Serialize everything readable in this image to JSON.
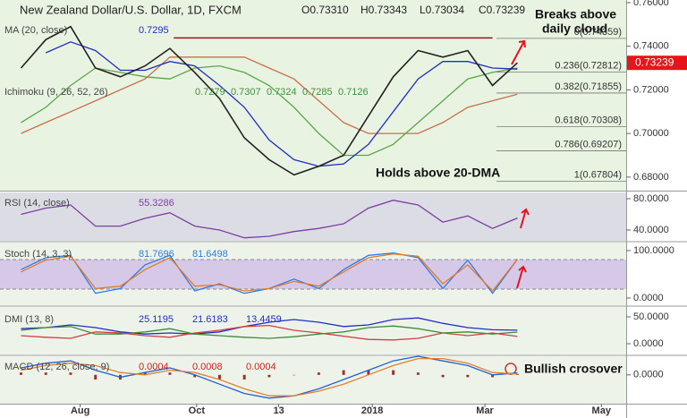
{
  "chart_data": [
    {
      "type": "line",
      "title": "New Zealand Dollar/U.S. Dollar, 1D, FXCM",
      "ohlc": [
        "O0.73310",
        "H0.73343",
        "L0.73034",
        "C0.73239"
      ],
      "indicators": [
        {
          "label": "MA (20, close)",
          "values": [
            "0.7295"
          ],
          "color": "#1f2fbf"
        },
        {
          "label": "Ichimoku (9, 26, 52, 26)",
          "values": [
            "0.7279",
            "0.7307",
            "0.7324",
            "0.7285",
            "0.7126"
          ],
          "color": "#3f8f3f"
        }
      ],
      "x": [
        0,
        13,
        26,
        39,
        52,
        65,
        78,
        91,
        104,
        117,
        130,
        143,
        156,
        169,
        182,
        195,
        208,
        221,
        234,
        247,
        260
      ],
      "xlim": [
        -11,
        317
      ],
      "xticks": [
        {
          "value": 31,
          "label": "Aug"
        },
        {
          "value": 92,
          "label": "Oct"
        },
        {
          "value": 135,
          "label": "13"
        },
        {
          "value": 184,
          "label": "2018"
        },
        {
          "value": 243,
          "label": "Mar"
        },
        {
          "value": 304,
          "label": "May"
        }
      ],
      "ylim": [
        0.6742,
        0.7612
      ],
      "yticks": [
        {
          "value": 0.76,
          "label": "0.76000"
        },
        {
          "value": 0.74,
          "label": "0.74000"
        },
        {
          "value": 0.72,
          "label": "0.72000"
        },
        {
          "value": 0.7,
          "label": "0.70000"
        },
        {
          "value": 0.68,
          "label": "0.68000"
        }
      ],
      "series": [
        {
          "color": "#5aa64a",
          "values": [
            0.705,
            0.712,
            0.722,
            0.73,
            0.728,
            0.726,
            0.725,
            0.73,
            0.731,
            0.728,
            0.722,
            0.712,
            0.7,
            0.69,
            0.69,
            0.695,
            0.705,
            0.715,
            0.725,
            0.728,
            0.73
          ]
        },
        {
          "color": "#c8704a",
          "values": [
            0.7,
            0.705,
            0.71,
            0.715,
            0.72,
            0.725,
            0.735,
            0.735,
            0.735,
            0.735,
            0.73,
            0.725,
            0.715,
            0.705,
            0.7,
            0.7,
            0.7,
            0.705,
            0.712,
            0.715,
            0.718
          ]
        },
        {
          "color": "#1f2fbf",
          "values": [
            null,
            0.737,
            0.742,
            0.738,
            0.729,
            0.729,
            0.733,
            0.731,
            0.722,
            0.712,
            0.697,
            0.688,
            0.685,
            0.686,
            0.695,
            0.71,
            0.725,
            0.733,
            0.733,
            0.73,
            0.7295
          ]
        },
        {
          "color": "#222222",
          "values": [
            0.73,
            0.743,
            0.749,
            0.73,
            0.726,
            0.731,
            0.739,
            0.728,
            0.716,
            0.698,
            0.688,
            0.681,
            0.685,
            0.69,
            0.708,
            0.726,
            0.738,
            0.735,
            0.738,
            0.722,
            0.7324
          ]
        }
      ],
      "resistance": {
        "value": 0.7438,
        "x": [
          80,
          247
        ],
        "color": "#8b1a1a"
      },
      "fibonacci": [
        {
          "value": 0.74359,
          "label": "0(0.74359)"
        },
        {
          "value": 0.72812,
          "label": "0.236(0.72812)"
        },
        {
          "value": 0.71855,
          "label": "0.382(0.71855)"
        },
        {
          "value": 0.70308,
          "label": "0.618(0.70308)"
        },
        {
          "value": 0.69207,
          "label": "0.786(0.69207)"
        },
        {
          "value": 0.67804,
          "label": "1(0.67804)"
        }
      ],
      "fib_start": 249,
      "last_price": {
        "value": 0.73239,
        "label": "0.73239",
        "color": "#e8141c"
      },
      "annotations": [
        "Breaks above",
        "daily cloud",
        "Holds above 20-DMA"
      ]
    },
    {
      "type": "line",
      "indicators": [
        {
          "label": "RSI (14, close)",
          "values": [
            "55.3286"
          ],
          "color": "#7b3fa0"
        }
      ],
      "x": [
        0,
        13,
        26,
        39,
        52,
        65,
        78,
        91,
        104,
        117,
        130,
        143,
        156,
        169,
        182,
        195,
        208,
        221,
        234,
        247,
        260
      ],
      "xlim": [
        -11,
        317
      ],
      "ylim": [
        27.4,
        88
      ],
      "yticks": [
        {
          "value": 80,
          "label": "80.0000"
        },
        {
          "value": 40,
          "label": "40.0000"
        }
      ],
      "series": [
        {
          "color": "#7b3fa0",
          "values": [
            60,
            68,
            72,
            45,
            45,
            55,
            62,
            45,
            40,
            30,
            32,
            38,
            42,
            48,
            68,
            78,
            72,
            50,
            58,
            42,
            55.3286
          ]
        }
      ]
    },
    {
      "type": "line",
      "indicators": [
        {
          "label": "Stoch (14, 3, 3)",
          "values": [
            "81.7696",
            "81.6498"
          ],
          "color": "#2e7de0"
        }
      ],
      "x": [
        0,
        13,
        26,
        39,
        52,
        65,
        78,
        91,
        104,
        117,
        130,
        143,
        156,
        169,
        182,
        195,
        208,
        221,
        234,
        247,
        260
      ],
      "xlim": [
        -11,
        317
      ],
      "ylim": [
        -13.2,
        115
      ],
      "yticks": [
        {
          "value": 100,
          "label": "100.0000"
        },
        {
          "value": 0,
          "label": "0.0000"
        }
      ],
      "series": [
        {
          "color": "#2e7de0",
          "values": [
            60,
            85,
            90,
            10,
            20,
            70,
            90,
            15,
            30,
            10,
            20,
            40,
            20,
            60,
            90,
            95,
            85,
            20,
            80,
            10,
            81.7696
          ]
        },
        {
          "color": "#e07b2e",
          "values": [
            55,
            80,
            88,
            20,
            25,
            60,
            85,
            25,
            28,
            15,
            20,
            35,
            25,
            55,
            85,
            93,
            88,
            30,
            70,
            15,
            81.6498
          ]
        }
      ]
    },
    {
      "type": "line",
      "indicators": [
        {
          "label": "DMI (13, 8)",
          "values": [
            "25.1195",
            "21.6183",
            "13.4459"
          ],
          "color": "#2030c0"
        }
      ],
      "x": [
        0,
        13,
        26,
        39,
        52,
        65,
        78,
        91,
        104,
        117,
        130,
        143,
        156,
        169,
        182,
        195,
        208,
        221,
        234,
        247,
        260
      ],
      "xlim": [
        -11,
        317
      ],
      "ylim": [
        -18.3,
        65
      ],
      "yticks": [
        {
          "value": 50,
          "label": "50.0000"
        },
        {
          "value": 0,
          "label": "0.0000"
        }
      ],
      "series": [
        {
          "color": "#2030c0",
          "values": [
            28,
            30,
            35,
            30,
            22,
            18,
            20,
            18,
            22,
            32,
            40,
            45,
            40,
            32,
            35,
            45,
            48,
            38,
            30,
            26,
            25.1195
          ]
        },
        {
          "color": "#3a8f3a",
          "values": [
            25,
            30,
            32,
            18,
            18,
            22,
            28,
            18,
            15,
            12,
            10,
            13,
            18,
            22,
            30,
            33,
            28,
            20,
            22,
            18,
            21.6183
          ]
        },
        {
          "color": "#d04040",
          "values": [
            15,
            12,
            10,
            22,
            20,
            15,
            12,
            20,
            25,
            32,
            34,
            25,
            20,
            14,
            8,
            7,
            10,
            20,
            15,
            20,
            13.4459
          ]
        }
      ]
    },
    {
      "type": "line",
      "indicators": [
        {
          "label": "MACD (12, 26, close, 9)",
          "values": [
            "0.0004",
            "0.0008",
            "0.0004"
          ],
          "color": "#d02020"
        }
      ],
      "x": [
        0,
        13,
        26,
        39,
        52,
        65,
        78,
        91,
        104,
        117,
        130,
        143,
        156,
        169,
        182,
        195,
        208,
        221,
        234,
        247,
        260
      ],
      "xlim": [
        -11,
        317
      ],
      "ylim": [
        -0.012,
        0.008
      ],
      "yticks": [
        {
          "value": 0,
          "label": "0.0000"
        }
      ],
      "series": [
        {
          "type": "bar",
          "color": "#a03030",
          "values": [
            0.001,
            0.001,
            0.001,
            -0.002,
            -0.002,
            0.001,
            0.001,
            -0.001,
            -0.002,
            -0.002,
            -0.001,
            0,
            0.001,
            0.002,
            0.002,
            0.002,
            0.001,
            -0.001,
            -0.001,
            -0.001,
            0.0004
          ]
        },
        {
          "color": "#2060d0",
          "values": [
            0.003,
            0.005,
            0.006,
            0.002,
            -0.001,
            0.001,
            0.003,
            0.0,
            -0.004,
            -0.008,
            -0.01,
            -0.009,
            -0.006,
            -0.002,
            0.002,
            0.006,
            0.008,
            0.006,
            0.004,
            0.0,
            0.0008
          ]
        },
        {
          "color": "#e08030",
          "values": [
            0.002,
            0.004,
            0.005,
            0.004,
            0.001,
            0.0,
            0.002,
            0.001,
            -0.002,
            -0.006,
            -0.009,
            -0.009,
            -0.007,
            -0.004,
            0.0,
            0.004,
            0.007,
            0.007,
            0.005,
            0.001,
            0.0004
          ]
        }
      ],
      "annotations": [
        "Bullish crosover"
      ]
    }
  ]
}
